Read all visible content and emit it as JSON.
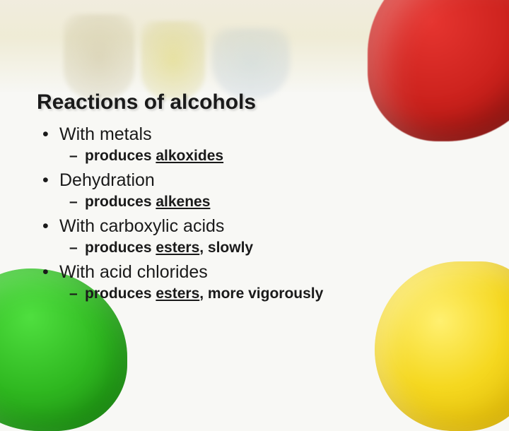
{
  "slide": {
    "title": "Reactions of alcohols",
    "title_fontsize": 30,
    "title_color": "#1a1a1a",
    "body_fontsize_main": 25,
    "body_fontsize_sub": 21,
    "body_color": "#1a1a1a",
    "font_family": "Arial",
    "background_color": "#f8f8f5",
    "items": [
      {
        "text": "With metals",
        "sub": {
          "prefix": "produces ",
          "keyword": "alkoxides",
          "suffix": ""
        }
      },
      {
        "text": "Dehydration",
        "sub": {
          "prefix": "produces ",
          "keyword": "alkenes",
          "suffix": ""
        }
      },
      {
        "text": "With carboxylic acids",
        "sub": {
          "prefix": "produces ",
          "keyword": "esters",
          "suffix": ", slowly"
        }
      },
      {
        "text": "With acid chlorides",
        "sub": {
          "prefix": "produces ",
          "keyword": "esters",
          "suffix": ", more vigorously"
        }
      }
    ],
    "decor": {
      "blob_red_color": "#e63530",
      "blob_yellow_color": "#f5d820",
      "blob_green_color": "#2fb820",
      "top_band_tint": "#ece6cc"
    }
  }
}
